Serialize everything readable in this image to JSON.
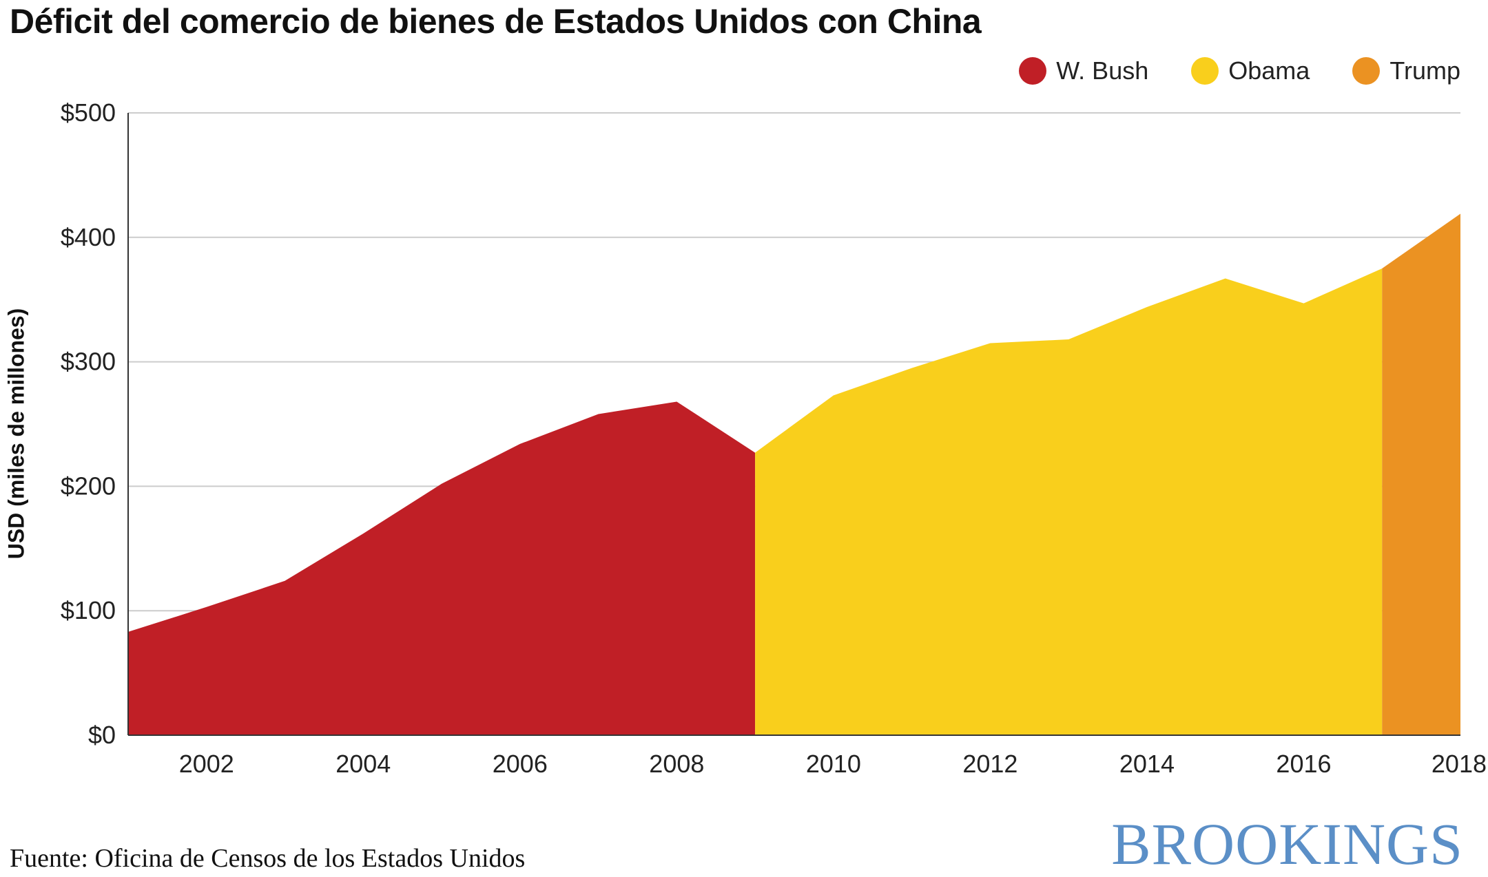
{
  "colors": {
    "bush": "#c01f26",
    "obama": "#f9cf1c",
    "trump": "#eb9222",
    "grid": "#cccccc",
    "axis": "#333333"
  },
  "footer": {
    "source": "Fuente: Oficina de Censos de los Estados Unidos",
    "logo": "BROOKINGS"
  },
  "chart_data": {
    "type": "area",
    "title": "Déficit del comercio de bienes de Estados Unidos con China",
    "ylabel": "USD (miles de millones)",
    "xlabel": "",
    "ylim": [
      0,
      500
    ],
    "xlim": [
      2001,
      2018
    ],
    "yticks": [
      0,
      100,
      200,
      300,
      400,
      500
    ],
    "ytick_labels": [
      "$0",
      "$100",
      "$200",
      "$300",
      "$400",
      "$500"
    ],
    "xticks": [
      2002,
      2004,
      2006,
      2008,
      2010,
      2012,
      2014,
      2016,
      2018
    ],
    "xtick_labels": [
      "2002",
      "2004",
      "2006",
      "2008",
      "2010",
      "2012",
      "2014",
      "2016",
      "2018"
    ],
    "grid": true,
    "legend_position": "top-right",
    "series": [
      {
        "name": "W. Bush",
        "color": "#c01f26",
        "x": [
          2001,
          2002,
          2003,
          2004,
          2005,
          2006,
          2007,
          2008,
          2009
        ],
        "values": [
          83,
          103,
          124,
          162,
          202,
          234,
          258,
          268,
          227
        ]
      },
      {
        "name": "Obama",
        "color": "#f9cf1c",
        "x": [
          2009,
          2010,
          2011,
          2012,
          2013,
          2014,
          2015,
          2016,
          2017
        ],
        "values": [
          227,
          273,
          295,
          315,
          318,
          344,
          367,
          347,
          375
        ]
      },
      {
        "name": "Trump",
        "color": "#eb9222",
        "x": [
          2017,
          2018
        ],
        "values": [
          375,
          419
        ]
      }
    ]
  }
}
